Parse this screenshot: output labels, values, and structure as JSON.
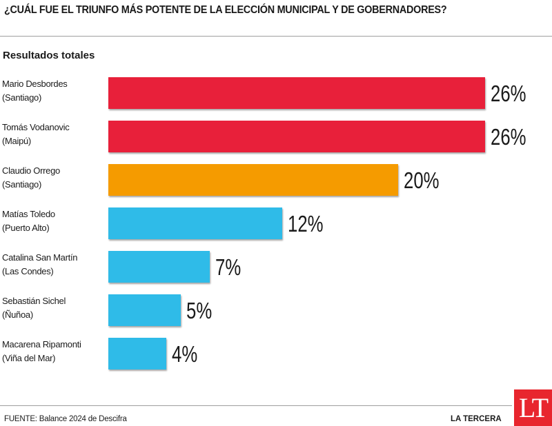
{
  "header": {
    "title": "¿CUÁL FUE EL TRIUNFO MÁS POTENTE DE LA ELECCIÓN MUNICIPAL Y DE GOBERNADORES?",
    "subtitle": "Resultados totales"
  },
  "chart_data": {
    "type": "bar",
    "orientation": "horizontal",
    "title": "¿CUÁL FUE EL TRIUNFO MÁS POTENTE DE LA ELECCIÓN MUNICIPAL Y DE GOBERNADORES?",
    "subtitle": "Resultados totales",
    "xlabel": "",
    "ylabel": "",
    "grid": false,
    "legend": "none",
    "xlim": [
      0,
      26
    ],
    "categories": [
      {
        "name": "Mario Desbordes",
        "place": "(Santiago)"
      },
      {
        "name": "Tomás Vodanovic",
        "place": "(Maipú)"
      },
      {
        "name": "Claudio Orrego",
        "place": "(Santiago)"
      },
      {
        "name": "Matías Toledo",
        "place": "(Puerto Alto)"
      },
      {
        "name": "Catalina San Martín",
        "place": "(Las Condes)"
      },
      {
        "name": "Sebastián Sichel",
        "place": "(Ñuñoa)"
      },
      {
        "name": "Macarena Ripamonti",
        "place": "(Viña del Mar)"
      }
    ],
    "values": [
      26,
      26,
      20,
      12,
      7,
      5,
      4
    ],
    "value_labels": [
      "26%",
      "26%",
      "20%",
      "12%",
      "7%",
      "5%",
      "4%"
    ],
    "colors": [
      "#e8203a",
      "#e8203a",
      "#f59b00",
      "#2fbbe8",
      "#2fbbe8",
      "#2fbbe8",
      "#2fbbe8"
    ]
  },
  "footer": {
    "source": "FUENTE: Balance 2024 de Descifra",
    "brand": "LA TERCERA",
    "logo_text": "LT"
  },
  "colors": {
    "logo_red": "#e8262e"
  }
}
